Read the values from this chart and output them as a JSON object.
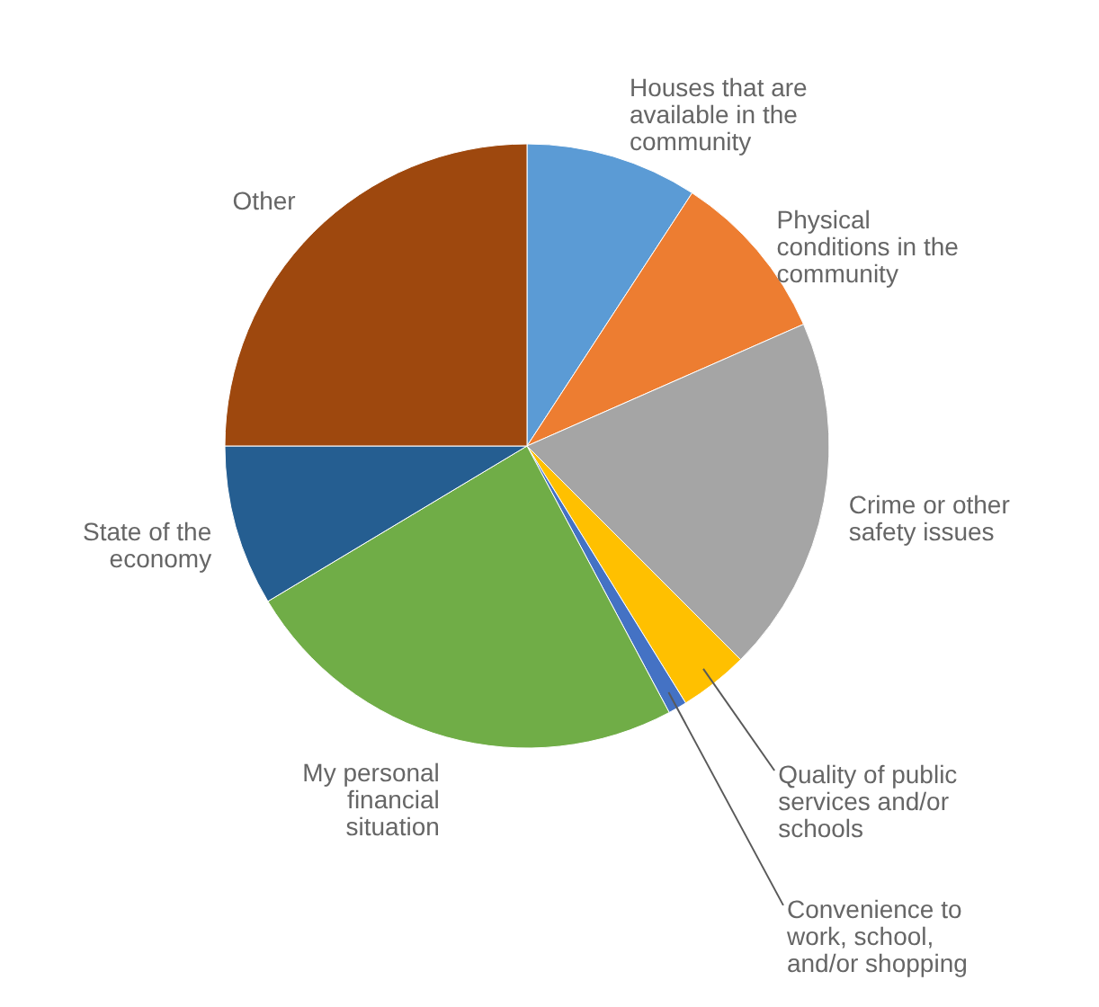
{
  "chart_data": {
    "type": "pie",
    "categories": [
      "Houses that are available in the community",
      "Physical conditions in the community",
      "Crime or other safety issues",
      "Quality of public services and/or schools",
      "Convenience to work, school, and/or shopping",
      "My personal financial situation",
      "State of the economy",
      "Other"
    ],
    "values": [
      9.2,
      9.2,
      19.1,
      3.7,
      1.0,
      24.2,
      8.6,
      25.0
    ],
    "colors": [
      "#5b9bd5",
      "#ed7d31",
      "#a5a5a5",
      "#ffc000",
      "#4472c4",
      "#70ad47",
      "#255e91",
      "#9e480e"
    ]
  }
}
